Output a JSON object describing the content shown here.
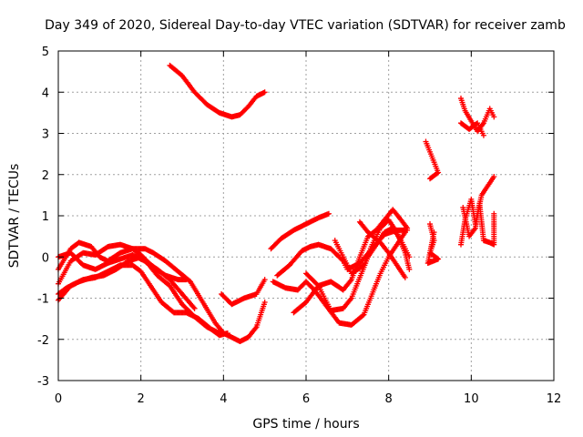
{
  "chart_data": {
    "type": "scatter",
    "title": "Day 349 of 2020, Sidereal Day-to-day VTEC variation (SDTVAR) for receiver zamb",
    "xlabel": "GPS time / hours",
    "ylabel": "SDTVAR / TECUs",
    "xlim": [
      0,
      12
    ],
    "ylim": [
      -3,
      5
    ],
    "xticks": [
      "0",
      "2",
      "4",
      "6",
      "8",
      "10",
      "12"
    ],
    "yticks": [
      "-3",
      "-2",
      "-1",
      "0",
      "1",
      "2",
      "3",
      "4",
      "5"
    ],
    "grid": true,
    "marker": "plus",
    "color": "#ff0000",
    "series": [
      {
        "points": [
          [
            0,
            -0.3
          ],
          [
            0.3,
            0.2
          ],
          [
            0.5,
            0.35
          ],
          [
            0.8,
            0.25
          ],
          [
            1.0,
            0.0
          ],
          [
            1.2,
            -0.1
          ],
          [
            1.5,
            0.1
          ],
          [
            1.8,
            0.2
          ],
          [
            2.0,
            0.05
          ],
          [
            2.3,
            -0.25
          ],
          [
            2.6,
            -0.45
          ],
          [
            2.9,
            -0.55
          ],
          [
            3.1,
            -0.55
          ]
        ]
      },
      {
        "points": [
          [
            0,
            -0.65
          ],
          [
            0.3,
            -0.1
          ],
          [
            0.6,
            0.1
          ],
          [
            0.9,
            0.05
          ],
          [
            1.2,
            0.25
          ],
          [
            1.5,
            0.3
          ],
          [
            1.8,
            0.2
          ],
          [
            2.1,
            0.2
          ],
          [
            2.3,
            0.1
          ],
          [
            2.6,
            -0.1
          ],
          [
            2.9,
            -0.35
          ],
          [
            3.2,
            -0.6
          ],
          [
            3.5,
            -1.1
          ],
          [
            3.8,
            -1.6
          ],
          [
            4.0,
            -1.85
          ],
          [
            4.2,
            -1.95
          ],
          [
            4.4,
            -2.05
          ],
          [
            4.6,
            -1.95
          ],
          [
            4.8,
            -1.7
          ],
          [
            5.0,
            -1.1
          ]
        ]
      },
      {
        "points": [
          [
            0,
            -1.05
          ],
          [
            0.3,
            -0.7
          ],
          [
            0.6,
            -0.55
          ],
          [
            0.9,
            -0.5
          ],
          [
            1.2,
            -0.35
          ],
          [
            1.5,
            -0.2
          ],
          [
            1.8,
            -0.2
          ],
          [
            2.0,
            -0.35
          ],
          [
            2.2,
            -0.65
          ],
          [
            2.5,
            -1.1
          ],
          [
            2.8,
            -1.35
          ],
          [
            3.1,
            -1.35
          ],
          [
            3.4,
            -1.5
          ],
          [
            3.7,
            -1.75
          ],
          [
            3.9,
            -1.9
          ],
          [
            4.1,
            -1.85
          ]
        ]
      },
      {
        "points": [
          [
            0,
            -0.9
          ],
          [
            0.2,
            -0.75
          ],
          [
            0.5,
            -0.6
          ],
          [
            0.8,
            -0.5
          ],
          [
            1.1,
            -0.45
          ],
          [
            1.4,
            -0.3
          ],
          [
            1.7,
            -0.1
          ],
          [
            2.0,
            0.0
          ],
          [
            2.2,
            -0.2
          ],
          [
            2.4,
            -0.45
          ],
          [
            2.7,
            -0.7
          ],
          [
            3.0,
            -1.15
          ],
          [
            3.3,
            -1.45
          ],
          [
            3.6,
            -1.7
          ],
          [
            3.9,
            -1.85
          ]
        ]
      },
      {
        "points": [
          [
            0,
            0
          ],
          [
            0.3,
            0.1
          ],
          [
            0.6,
            -0.2
          ],
          [
            0.9,
            -0.3
          ],
          [
            1.2,
            -0.15
          ],
          [
            1.5,
            -0.05
          ],
          [
            1.8,
            0.05
          ],
          [
            2.1,
            -0.1
          ],
          [
            2.4,
            -0.3
          ],
          [
            2.7,
            -0.55
          ],
          [
            3.0,
            -0.9
          ],
          [
            3.3,
            -1.25
          ]
        ]
      },
      {
        "points": [
          [
            2.7,
            4.65
          ],
          [
            3.0,
            4.4
          ],
          [
            3.3,
            4.0
          ],
          [
            3.6,
            3.7
          ],
          [
            3.9,
            3.5
          ],
          [
            4.2,
            3.4
          ],
          [
            4.4,
            3.45
          ],
          [
            4.6,
            3.65
          ],
          [
            4.8,
            3.9
          ],
          [
            5.0,
            4.0
          ]
        ]
      },
      {
        "points": [
          [
            3.95,
            -0.9
          ],
          [
            4.2,
            -1.15
          ],
          [
            4.5,
            -1.0
          ],
          [
            4.8,
            -0.9
          ],
          [
            5.0,
            -0.55
          ]
        ]
      },
      {
        "points": [
          [
            5.15,
            0.2
          ],
          [
            5.4,
            0.45
          ],
          [
            5.7,
            0.65
          ],
          [
            6.0,
            0.8
          ],
          [
            6.3,
            0.95
          ],
          [
            6.55,
            1.05
          ]
        ]
      },
      {
        "points": [
          [
            5.3,
            -0.45
          ],
          [
            5.6,
            -0.2
          ],
          [
            5.9,
            0.15
          ],
          [
            6.1,
            0.25
          ],
          [
            6.3,
            0.3
          ],
          [
            6.6,
            0.2
          ],
          [
            6.9,
            -0.1
          ],
          [
            7.0,
            -0.3
          ],
          [
            7.3,
            -0.15
          ],
          [
            7.6,
            0.2
          ],
          [
            7.9,
            0.55
          ],
          [
            8.2,
            0.65
          ],
          [
            8.45,
            0.65
          ]
        ]
      },
      {
        "points": [
          [
            5.2,
            -0.6
          ],
          [
            5.5,
            -0.75
          ],
          [
            5.8,
            -0.8
          ],
          [
            6.0,
            -0.6
          ],
          [
            6.2,
            -0.8
          ],
          [
            6.5,
            -1.2
          ],
          [
            6.8,
            -1.6
          ],
          [
            7.1,
            -1.65
          ],
          [
            7.4,
            -1.4
          ],
          [
            7.6,
            -0.9
          ],
          [
            7.8,
            -0.4
          ],
          [
            8.0,
            0.0
          ],
          [
            8.2,
            0.3
          ],
          [
            8.4,
            0.6
          ]
        ]
      },
      {
        "points": [
          [
            5.7,
            -1.35
          ],
          [
            6.0,
            -1.1
          ],
          [
            6.3,
            -0.7
          ],
          [
            6.6,
            -0.6
          ],
          [
            6.9,
            -0.8
          ],
          [
            7.1,
            -0.55
          ],
          [
            7.3,
            0.0
          ],
          [
            7.5,
            0.5
          ],
          [
            7.7,
            0.65
          ],
          [
            7.9,
            0.9
          ],
          [
            8.1,
            1.15
          ],
          [
            8.3,
            0.9
          ],
          [
            8.45,
            0.7
          ]
        ]
      },
      {
        "points": [
          [
            6.0,
            -0.4
          ],
          [
            6.3,
            -0.7
          ],
          [
            6.6,
            -1.3
          ],
          [
            6.9,
            -1.25
          ],
          [
            7.1,
            -1.0
          ],
          [
            7.3,
            -0.5
          ],
          [
            7.5,
            0.0
          ],
          [
            7.7,
            0.3
          ],
          [
            7.9,
            0.6
          ],
          [
            8.1,
            0.7
          ],
          [
            8.3,
            0.4
          ],
          [
            8.5,
            0.0
          ]
        ]
      },
      {
        "points": [
          [
            6.7,
            0.4
          ],
          [
            6.9,
            0.0
          ],
          [
            7.1,
            -0.4
          ],
          [
            7.4,
            -0.2
          ],
          [
            7.6,
            0.3
          ],
          [
            7.8,
            0.7
          ],
          [
            8.0,
            0.9
          ],
          [
            8.2,
            0.6
          ],
          [
            8.4,
            0.1
          ],
          [
            8.5,
            -0.3
          ]
        ]
      },
      {
        "points": [
          [
            7.3,
            0.85
          ],
          [
            7.5,
            0.6
          ],
          [
            7.8,
            0.35
          ],
          [
            8.0,
            0.1
          ],
          [
            8.2,
            -0.2
          ],
          [
            8.4,
            -0.5
          ]
        ]
      },
      {
        "points": [
          [
            8.9,
            2.8
          ],
          [
            9.0,
            2.55
          ],
          [
            9.1,
            2.3
          ],
          [
            9.2,
            2.05
          ],
          [
            9.0,
            1.9
          ]
        ]
      },
      {
        "points": [
          [
            9.0,
            0.8
          ],
          [
            9.1,
            0.4
          ],
          [
            9.0,
            0.1
          ],
          [
            9.2,
            -0.05
          ],
          [
            8.95,
            -0.15
          ],
          [
            9.1,
            0.6
          ]
        ]
      },
      {
        "points": [
          [
            9.75,
            3.85
          ],
          [
            9.85,
            3.55
          ],
          [
            10.0,
            3.3
          ],
          [
            10.15,
            3.05
          ],
          [
            10.3,
            3.25
          ],
          [
            10.45,
            3.6
          ],
          [
            10.55,
            3.4
          ]
        ]
      },
      {
        "points": [
          [
            9.75,
            3.25
          ],
          [
            9.95,
            3.1
          ],
          [
            10.15,
            3.25
          ],
          [
            10.3,
            2.95
          ]
        ]
      },
      {
        "points": [
          [
            9.75,
            0.3
          ],
          [
            9.85,
            0.9
          ],
          [
            10.0,
            1.4
          ],
          [
            10.1,
            0.8
          ],
          [
            10.25,
            1.5
          ],
          [
            10.45,
            1.8
          ],
          [
            10.55,
            1.95
          ]
        ]
      },
      {
        "points": [
          [
            9.8,
            1.2
          ],
          [
            9.95,
            0.5
          ],
          [
            10.1,
            0.7
          ],
          [
            10.2,
            1.3
          ],
          [
            10.3,
            0.4
          ],
          [
            10.45,
            0.35
          ],
          [
            10.55,
            0.3
          ],
          [
            10.55,
            1.05
          ]
        ]
      }
    ]
  }
}
